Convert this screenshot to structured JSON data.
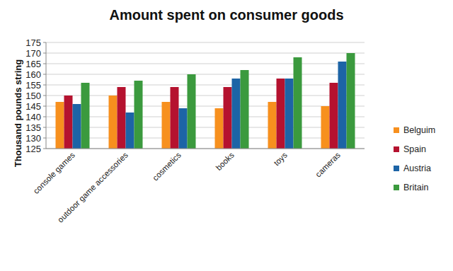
{
  "chart_data": {
    "type": "bar",
    "title": "Amount spent on consumer goods",
    "y_label": "Thousand pounds string",
    "categories": [
      "console games",
      "outdoor game accessories",
      "cosmetics",
      "books",
      "toys",
      "cameras"
    ],
    "series": [
      {
        "name": "Belguim",
        "color": "#f7901e",
        "values": [
          147,
          150,
          147,
          144,
          147,
          145
        ]
      },
      {
        "name": "Spain",
        "color": "#b5122f",
        "values": [
          150,
          154,
          154,
          154,
          158,
          156
        ]
      },
      {
        "name": "Austria",
        "color": "#1d64a6",
        "values": [
          146,
          142,
          144,
          158,
          158,
          166
        ]
      },
      {
        "name": "Britain",
        "color": "#3b9a3e",
        "values": [
          156,
          157,
          160,
          162,
          168,
          170
        ]
      }
    ],
    "ylim": [
      125,
      175
    ],
    "yticks": [
      125,
      130,
      135,
      140,
      145,
      150,
      155,
      160,
      165,
      170,
      175
    ],
    "grid": true,
    "legend": "right"
  }
}
